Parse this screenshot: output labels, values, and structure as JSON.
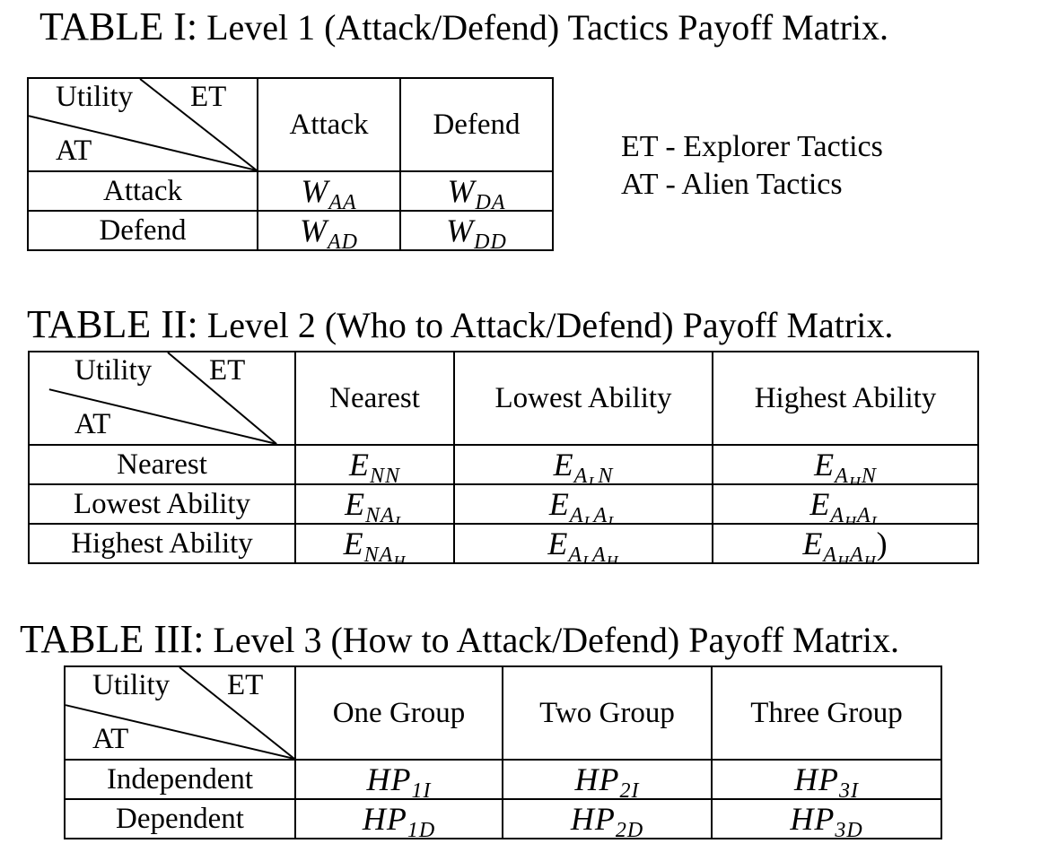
{
  "table1": {
    "caption_label": "TABLE I:",
    "caption_text": "Level 1 (Attack/Defend) Tactics Payoff Matrix.",
    "corner": {
      "utility": "Utility",
      "et": "ET",
      "at": "AT"
    },
    "columns": [
      "Attack",
      "Defend"
    ],
    "rows": [
      {
        "label": "Attack",
        "cells": [
          {
            "base": "W",
            "sub": "AA",
            "subsub": ""
          },
          {
            "base": "W",
            "sub": "DA",
            "subsub": ""
          }
        ]
      },
      {
        "label": "Defend",
        "cells": [
          {
            "base": "W",
            "sub": "AD",
            "subsub": ""
          },
          {
            "base": "W",
            "sub": "DD",
            "subsub": ""
          }
        ]
      }
    ]
  },
  "legend": {
    "line1": "ET - Explorer Tactics",
    "line2": "AT - Alien Tactics"
  },
  "table2": {
    "caption_label": "TABLE II:",
    "caption_text": "Level 2 (Who to Attack/Defend) Payoff Matrix.",
    "corner": {
      "utility": "Utility",
      "et": "ET",
      "at": "AT"
    },
    "columns": [
      "Nearest",
      "Lowest Ability",
      "Highest Ability"
    ],
    "rows": [
      {
        "label": "Nearest",
        "cells": [
          {
            "parts": [
              {
                "t": "NN",
                "s": ""
              }
            ],
            "tail": ""
          },
          {
            "parts": [
              {
                "t": "A",
                "s": "L"
              },
              {
                "t": "N",
                "s": ""
              }
            ],
            "tail": ""
          },
          {
            "parts": [
              {
                "t": "A",
                "s": "H"
              },
              {
                "t": "N",
                "s": ""
              }
            ],
            "tail": ""
          }
        ]
      },
      {
        "label": "Lowest Ability",
        "cells": [
          {
            "parts": [
              {
                "t": "NA",
                "s": "L"
              }
            ],
            "tail": ""
          },
          {
            "parts": [
              {
                "t": "A",
                "s": "L"
              },
              {
                "t": "A",
                "s": "L"
              }
            ],
            "tail": ""
          },
          {
            "parts": [
              {
                "t": "A",
                "s": "H"
              },
              {
                "t": "A",
                "s": "L"
              }
            ],
            "tail": ""
          }
        ]
      },
      {
        "label": "Highest Ability",
        "cells": [
          {
            "parts": [
              {
                "t": "NA",
                "s": "H"
              }
            ],
            "tail": ""
          },
          {
            "parts": [
              {
                "t": "A",
                "s": "L"
              },
              {
                "t": "A",
                "s": "H"
              }
            ],
            "tail": ""
          },
          {
            "parts": [
              {
                "t": "A",
                "s": "H"
              },
              {
                "t": "A",
                "s": "H"
              }
            ],
            "tail": ")"
          }
        ]
      }
    ],
    "cell_base": "E"
  },
  "table3": {
    "caption_label": "TABLE III:",
    "caption_text": "Level 3 (How to Attack/Defend) Payoff Matrix.",
    "corner": {
      "utility": "Utility",
      "et": "ET",
      "at": "AT"
    },
    "columns": [
      "One Group",
      "Two Group",
      "Three Group"
    ],
    "rows": [
      {
        "label": "Independent",
        "cells": [
          {
            "base": "HP",
            "sub": "1I"
          },
          {
            "base": "HP",
            "sub": "2I"
          },
          {
            "base": "HP",
            "sub": "3I"
          }
        ]
      },
      {
        "label": "Dependent",
        "cells": [
          {
            "base": "HP",
            "sub": "1D"
          },
          {
            "base": "HP",
            "sub": "2D"
          },
          {
            "base": "HP",
            "sub": "3D"
          }
        ]
      }
    ]
  }
}
